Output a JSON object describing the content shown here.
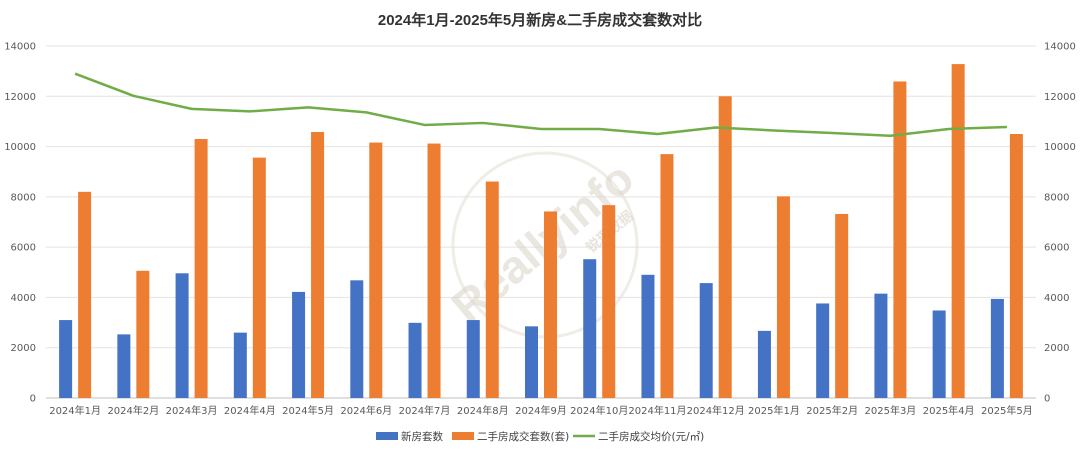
{
  "chart_data": {
    "type": "bar",
    "title": "2024年1月-2025年5月新房&二手房成交套数对比",
    "categories": [
      "2024年1月",
      "2024年2月",
      "2024年3月",
      "2024年4月",
      "2024年5月",
      "2024年6月",
      "2024年7月",
      "2024年8月",
      "2024年9月",
      "2024年10月",
      "2024年11月",
      "2024年12月",
      "2025年1月",
      "2025年2月",
      "2025年3月",
      "2025年4月",
      "2025年5月"
    ],
    "series": [
      {
        "name": "新房套数",
        "type": "bar",
        "color": "#4472c4",
        "values": [
          3100,
          2530,
          4960,
          2600,
          4220,
          4680,
          2990,
          3100,
          2850,
          5520,
          4900,
          4570,
          2670,
          3760,
          4150,
          3480,
          3940
        ]
      },
      {
        "name": "二手房成交套数(套)",
        "type": "bar",
        "color": "#ed7d31",
        "values": [
          8200,
          5060,
          10300,
          9560,
          10580,
          10160,
          10120,
          8610,
          7420,
          7670,
          9700,
          12000,
          8020,
          7320,
          12590,
          13280,
          10500
        ]
      },
      {
        "name": "二手房成交均价(元/㎡)",
        "type": "line",
        "axis": "right",
        "color": "#70ad47",
        "values": [
          12900,
          12020,
          11500,
          11400,
          11560,
          11360,
          10860,
          10940,
          10700,
          10700,
          10500,
          10760,
          10640,
          10540,
          10430,
          10700,
          10780
        ]
      }
    ],
    "ylim": [
      0,
      14000
    ],
    "y2lim": [
      0,
      14000
    ],
    "yticks": [
      0,
      2000,
      4000,
      6000,
      8000,
      10000,
      12000,
      14000
    ],
    "grid": true,
    "legend": "bottom"
  },
  "watermark": {
    "text": "Reallyinfo",
    "sub": "锐理数据"
  }
}
